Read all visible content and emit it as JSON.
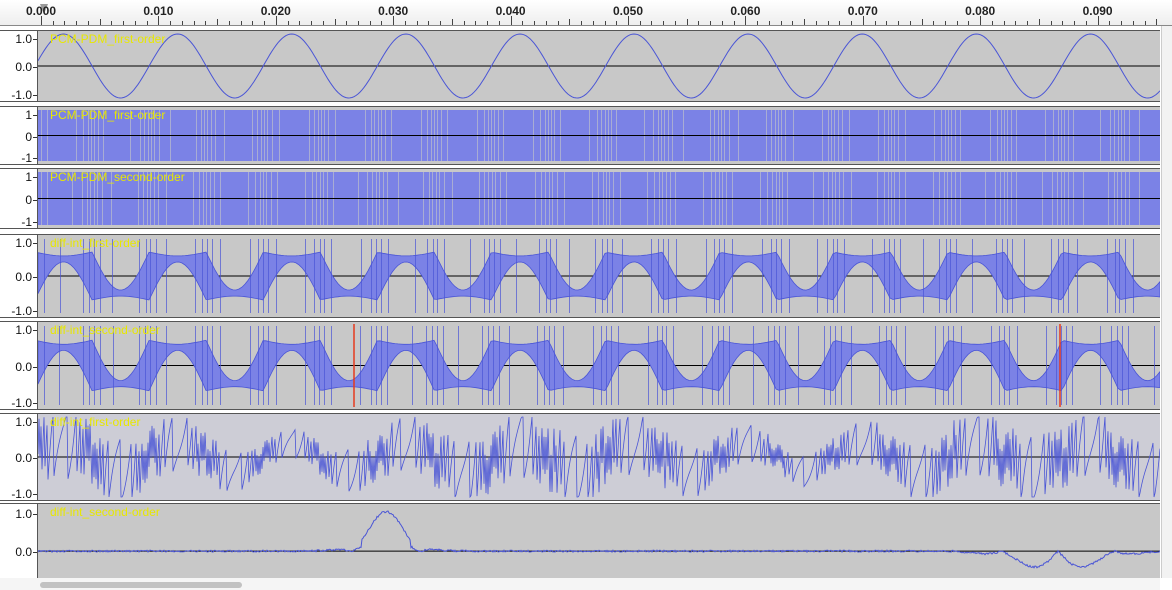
{
  "ruler": {
    "ticks": [
      "0.000",
      "0.010",
      "0.020",
      "0.030",
      "0.040",
      "0.050",
      "0.060",
      "0.070",
      "0.080",
      "0.090"
    ]
  },
  "tracks": [
    {
      "name": "PCM-PDM_first-order",
      "type": "sine",
      "scale": [
        "1.0",
        "0.0",
        "-1.0"
      ]
    },
    {
      "name": "PCM-PDM_first-order",
      "type": "pdm1",
      "scale": [
        "1",
        "0",
        "-1"
      ]
    },
    {
      "name": "PCM-PDM_second-order",
      "type": "pdm2",
      "scale": [
        "1",
        "0",
        "-1"
      ]
    },
    {
      "name": "diff-int_first-order",
      "type": "band1",
      "scale": [
        "1.0",
        "0.0",
        "-1.0"
      ]
    },
    {
      "name": "diff-int_second-order",
      "type": "band2",
      "scale": [
        "1.0",
        "0.0",
        "-1.0"
      ]
    },
    {
      "name": "diff-int_first-order",
      "type": "saw",
      "scale": [
        "1.0",
        "0.0",
        "-1.0"
      ]
    },
    {
      "name": "diff-int_second-order",
      "type": "ripple",
      "scale": [
        "1.0",
        "0.0"
      ]
    }
  ],
  "colors": {
    "waveform": "#4a55d6",
    "fill": "#7b82e6",
    "track_bg": "#c8c8c8",
    "track_name": "#e8e800",
    "clip": "#e53b1f"
  }
}
